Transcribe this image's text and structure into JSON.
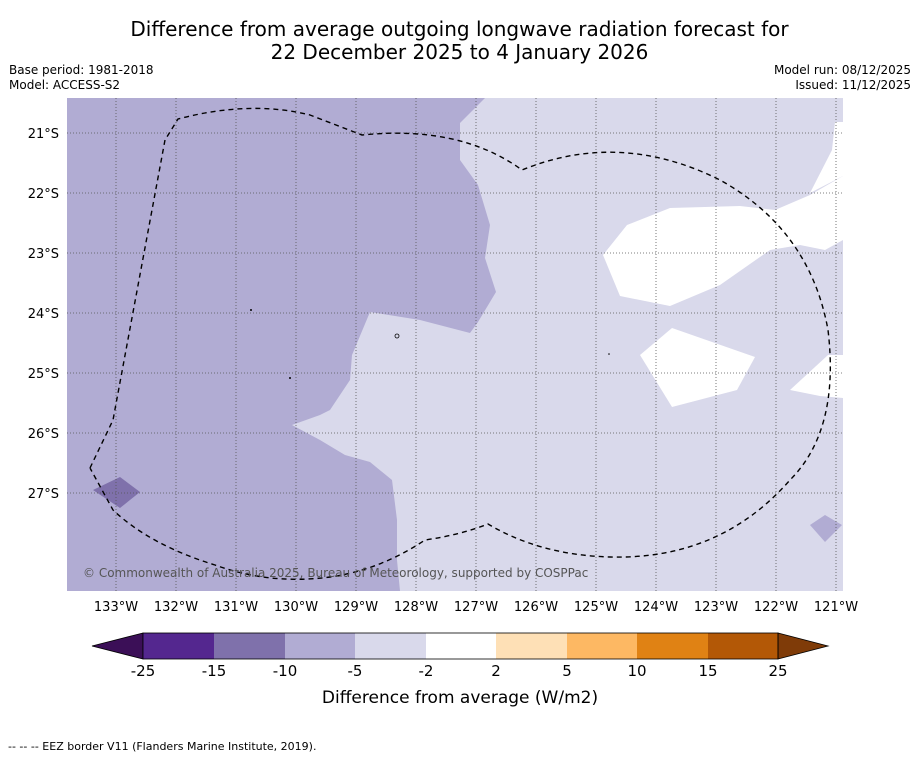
{
  "title": {
    "line1": "Difference from average outgoing longwave radiation forecast for",
    "line2": "22 December 2025 to 4 January 2026"
  },
  "meta_left": {
    "base_period": "Base period: 1981-2018",
    "model": "Model: ACCESS-S2"
  },
  "meta_right": {
    "model_run": "Model run: 08/12/2025",
    "issued": "Issued: 11/12/2025"
  },
  "map": {
    "lat_labels": [
      "21°S",
      "22°S",
      "23°S",
      "24°S",
      "25°S",
      "26°S",
      "27°S"
    ],
    "lon_labels": [
      "133°W",
      "132°W",
      "131°W",
      "130°W",
      "129°W",
      "128°W",
      "127°W",
      "126°W",
      "125°W",
      "124°W",
      "123°W",
      "122°W",
      "121°W"
    ],
    "copyright": "© Commonwealth of Australia 2025, Bureau of Meteorology, supported by COSPPac",
    "colors": {
      "minus10_to_minus5": "#b1acd3",
      "minus5_to_minus2": "#d9d9eb",
      "minus15_to_minus10": "#7f71ab",
      "neutral": "#ffffff"
    }
  },
  "colorbar": {
    "title": "Difference from average (W/m2)",
    "tick_labels": [
      "-25",
      "-15",
      "-10",
      "-5",
      "-2",
      "2",
      "5",
      "10",
      "15",
      "25"
    ],
    "colors": [
      "#3b0f57",
      "#54278f",
      "#7f71ab",
      "#b1acd3",
      "#d9d9eb",
      "#ffffff",
      "#fee0b6",
      "#fdb863",
      "#e08214",
      "#b35806",
      "#7f3b08"
    ]
  },
  "footer": "-- -- -- EEZ border V11 (Flanders Marine Institute, 2019)."
}
